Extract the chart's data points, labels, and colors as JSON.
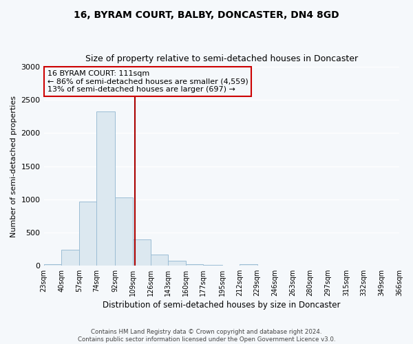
{
  "title": "16, BYRAM COURT, BALBY, DONCASTER, DN4 8GD",
  "subtitle": "Size of property relative to semi-detached houses in Doncaster",
  "xlabel": "Distribution of semi-detached houses by size in Doncaster",
  "ylabel": "Number of semi-detached properties",
  "bin_edges": [
    23,
    40,
    57,
    74,
    92,
    109,
    126,
    143,
    160,
    177,
    195,
    212,
    229,
    246,
    263,
    280,
    297,
    315,
    332,
    349,
    366
  ],
  "bin_counts": [
    20,
    240,
    970,
    2330,
    1030,
    395,
    165,
    75,
    20,
    5,
    2,
    20,
    1,
    0,
    0,
    0,
    0,
    0,
    0,
    0
  ],
  "property_size": 111,
  "annotation_title": "16 BYRAM COURT: 111sqm",
  "annotation_line1": "← 86% of semi-detached houses are smaller (4,559)",
  "annotation_line2": "13% of semi-detached houses are larger (697) →",
  "bar_facecolor": "#dce8f0",
  "bar_edgecolor": "#9bbdd4",
  "vline_color": "#aa0000",
  "annotation_box_edgecolor": "#cc0000",
  "background_color": "#f5f8fb",
  "axes_background": "#f5f8fb",
  "grid_color": "#ffffff",
  "ylim": [
    0,
    3000
  ],
  "tick_labels": [
    "23sqm",
    "40sqm",
    "57sqm",
    "74sqm",
    "92sqm",
    "109sqm",
    "126sqm",
    "143sqm",
    "160sqm",
    "177sqm",
    "195sqm",
    "212sqm",
    "229sqm",
    "246sqm",
    "263sqm",
    "280sqm",
    "297sqm",
    "315sqm",
    "332sqm",
    "349sqm",
    "366sqm"
  ],
  "footer_line1": "Contains HM Land Registry data © Crown copyright and database right 2024.",
  "footer_line2": "Contains public sector information licensed under the Open Government Licence v3.0."
}
